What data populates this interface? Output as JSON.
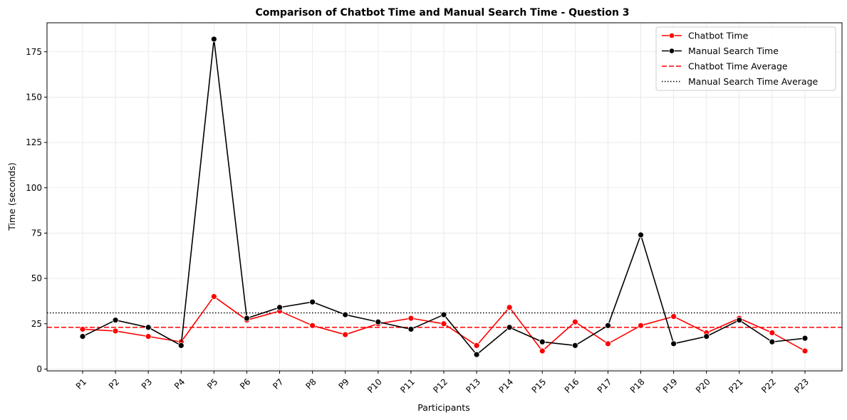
{
  "chart_data": {
    "type": "line",
    "title": "Comparison of Chatbot Time and Manual Search Time - Question 3",
    "xlabel": "Participants",
    "ylabel": "Time (seconds)",
    "categories": [
      "P1",
      "P2",
      "P3",
      "P4",
      "P5",
      "P6",
      "P7",
      "P8",
      "P9",
      "P10",
      "P11",
      "P12",
      "P13",
      "P14",
      "P15",
      "P16",
      "P17",
      "P18",
      "P19",
      "P20",
      "P21",
      "P22",
      "P23"
    ],
    "yticks": [
      0,
      25,
      50,
      75,
      100,
      125,
      150,
      175
    ],
    "ylim": [
      -1,
      191
    ],
    "grid": true,
    "legend_position": "top-right",
    "series": [
      {
        "name": "Chatbot Time",
        "color": "#ff0000",
        "marker": "circle",
        "values": [
          22,
          21,
          18,
          15,
          40,
          27,
          32,
          24,
          19,
          25,
          28,
          25,
          13,
          34,
          10,
          26,
          14,
          24,
          29,
          20,
          28,
          20,
          10
        ]
      },
      {
        "name": "Manual Search Time",
        "color": "#000000",
        "marker": "circle",
        "values": [
          18,
          27,
          23,
          13,
          182,
          28,
          34,
          37,
          30,
          26,
          22,
          30,
          8,
          23,
          15,
          13,
          24,
          74,
          14,
          18,
          27,
          15,
          17
        ]
      }
    ],
    "reference_lines": [
      {
        "name": "Chatbot Time Average",
        "value": 23,
        "color": "#ff0000",
        "style": "dashed"
      },
      {
        "name": "Manual Search Time Average",
        "value": 31,
        "color": "#000000",
        "style": "dotted"
      }
    ]
  }
}
